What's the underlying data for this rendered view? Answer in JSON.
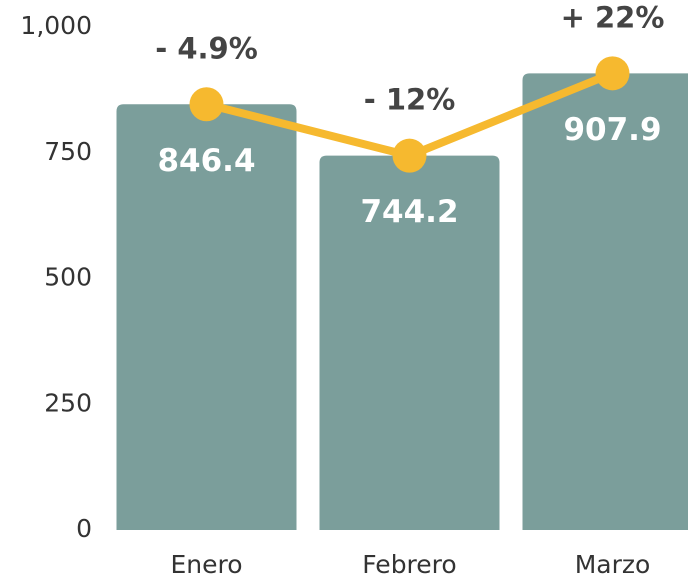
{
  "chart_data": {
    "type": "bar",
    "categories": [
      "Enero",
      "Febrero",
      "Marzo"
    ],
    "values": [
      846.4,
      744.2,
      907.9
    ],
    "change_labels": [
      "- 4.9%",
      "- 12%",
      "+ 22%"
    ],
    "color": "#7b9e9b",
    "line_color": "#f6b92f",
    "ylim": [
      0,
      1000
    ],
    "yticks": [
      0,
      250,
      500,
      750,
      {
        "value": 1000,
        "label": "1,000"
      }
    ],
    "grid": false
  }
}
